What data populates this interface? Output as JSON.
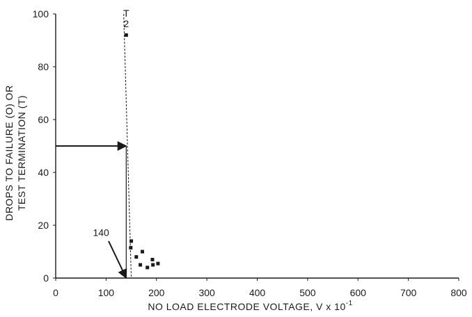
{
  "chart_data": {
    "type": "scatter",
    "xlabel": "NO LOAD ELECTRODE VOLTAGE, V x 10",
    "xlabel_exponent": "-1",
    "ylabel": [
      "DROPS TO FAILURE (O) OR",
      "TEST TERMINATION (T)"
    ],
    "xlim": [
      0,
      800
    ],
    "ylim": [
      0,
      100
    ],
    "x_ticks": [
      "0",
      "100",
      "200",
      "300",
      "400",
      "500",
      "600",
      "700",
      "800"
    ],
    "y_ticks": [
      "0",
      "20",
      "40",
      "60",
      "80",
      "100"
    ],
    "grid": false,
    "series": [
      {
        "marker": "square",
        "points": [
          {
            "x": 140,
            "y": 92
          },
          {
            "x": 150,
            "y": 14
          },
          {
            "x": 149,
            "y": 11.5
          },
          {
            "x": 160,
            "y": 8
          },
          {
            "x": 172,
            "y": 10
          },
          {
            "x": 168,
            "y": 5
          },
          {
            "x": 182,
            "y": 4
          },
          {
            "x": 192,
            "y": 7
          },
          {
            "x": 193,
            "y": 5
          },
          {
            "x": 203,
            "y": 5.5
          }
        ]
      }
    ],
    "annotations": [
      {
        "text": "T",
        "x": 140,
        "y": 100
      },
      {
        "text": "2",
        "x": 140,
        "y": 96
      },
      {
        "text": "140",
        "x": 90,
        "y": 17
      }
    ],
    "reference_lines": {
      "horizontal_arrow": {
        "from": {
          "x": 0,
          "y": 50
        },
        "to": {
          "x": 140,
          "y": 50
        }
      },
      "vertical_solid": {
        "x": 140,
        "from_y": 50,
        "to_y": 0
      },
      "dashed_fit": {
        "from": {
          "x": 135,
          "y": 100
        },
        "to": {
          "x": 150,
          "y": 0
        }
      },
      "pointer_arrow": {
        "from": {
          "x": 105,
          "y": 14
        },
        "to": {
          "x": 140,
          "y": 0
        }
      }
    },
    "colors": {
      "ink": "#1a1a1a",
      "background": "#ffffff"
    }
  }
}
